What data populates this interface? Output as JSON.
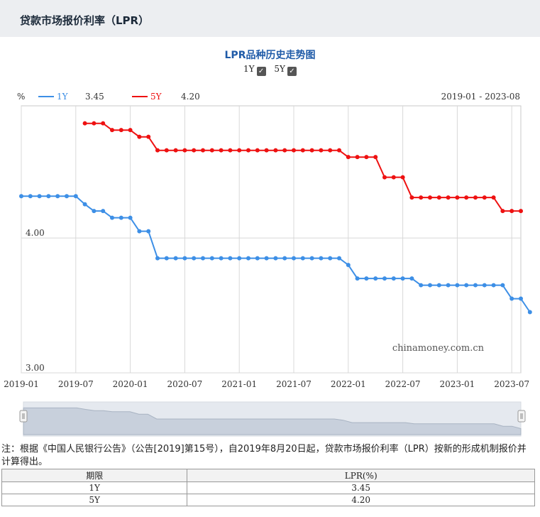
{
  "header": {
    "title": "贷款市场报价利率（LPR）"
  },
  "chart_title": "LPR品种历史走势图",
  "toggles": [
    {
      "label": "1Y",
      "checked": true
    },
    {
      "label": "5Y",
      "checked": true
    }
  ],
  "legend": {
    "unit": "%",
    "date_range": "2019-01 - 2023-08"
  },
  "watermark": "chinamoney.com.cn",
  "colors": {
    "1Y": "#3d8fe6",
    "5Y": "#ee1111"
  },
  "chart_data": {
    "type": "line",
    "y_ticks": [
      "4.00",
      "3.00"
    ],
    "ylim": [
      3.0,
      4.98
    ],
    "x_ticks": [
      "2019-01",
      "2019-07",
      "2020-01",
      "2020-07",
      "2021-01",
      "2021-07",
      "2022-01",
      "2022-07",
      "2023-01",
      "2023-07"
    ],
    "xlim": [
      "2019-01",
      "2023-08"
    ],
    "grid": true,
    "series": [
      {
        "name": "1Y",
        "last_value": "3.45",
        "start": "2019-01",
        "values": [
          4.31,
          4.31,
          4.31,
          4.31,
          4.31,
          4.31,
          4.31,
          4.25,
          4.2,
          4.2,
          4.15,
          4.15,
          4.15,
          4.05,
          4.05,
          3.85,
          3.85,
          3.85,
          3.85,
          3.85,
          3.85,
          3.85,
          3.85,
          3.85,
          3.85,
          3.85,
          3.85,
          3.85,
          3.85,
          3.85,
          3.85,
          3.85,
          3.85,
          3.85,
          3.85,
          3.85,
          3.8,
          3.7,
          3.7,
          3.7,
          3.7,
          3.7,
          3.7,
          3.7,
          3.65,
          3.65,
          3.65,
          3.65,
          3.65,
          3.65,
          3.65,
          3.65,
          3.65,
          3.65,
          3.55,
          3.55,
          3.45
        ]
      },
      {
        "name": "5Y",
        "last_value": "4.20",
        "start": "2019-08",
        "values": [
          4.85,
          4.85,
          4.85,
          4.8,
          4.8,
          4.8,
          4.75,
          4.75,
          4.65,
          4.65,
          4.65,
          4.65,
          4.65,
          4.65,
          4.65,
          4.65,
          4.65,
          4.65,
          4.65,
          4.65,
          4.65,
          4.65,
          4.65,
          4.65,
          4.65,
          4.65,
          4.65,
          4.65,
          4.65,
          4.6,
          4.6,
          4.6,
          4.6,
          4.45,
          4.45,
          4.45,
          4.3,
          4.3,
          4.3,
          4.3,
          4.3,
          4.3,
          4.3,
          4.3,
          4.3,
          4.3,
          4.2,
          4.2,
          4.2
        ]
      }
    ]
  },
  "note": "注：根据《中国人民银行公告》（公告[2019]第15号），自2019年8月20日起，贷款市场报价利率（LPR）按新的形成机制报价并计算得出。",
  "table": {
    "headers": [
      "期限",
      "LPR(%)"
    ],
    "rows": [
      {
        "term": "1Y",
        "value": "3.45"
      },
      {
        "term": "5Y",
        "value": "4.20"
      }
    ]
  }
}
